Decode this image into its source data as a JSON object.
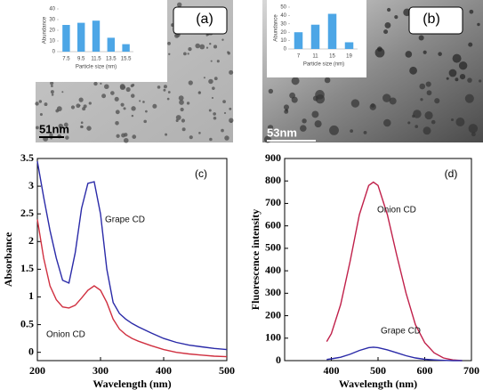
{
  "chart_data": [
    {
      "type": "bar",
      "panel_label": "(a)",
      "scale_bar": "51nm",
      "xlabel": "Particle size (nm)",
      "ylabel": "Abundance",
      "categories": [
        "7.5",
        "9.5",
        "11.5",
        "13.5",
        "15.5"
      ],
      "values": [
        25,
        27,
        29,
        13,
        7
      ],
      "color": "#4da6e6",
      "ylim": [
        0,
        40
      ],
      "yticks": [
        0,
        10,
        20,
        30,
        40
      ]
    },
    {
      "type": "bar",
      "panel_label": "(b)",
      "scale_bar": "53nm",
      "xlabel": "Particle size (nm)",
      "ylabel": "Abundance",
      "categories": [
        "7",
        "11",
        "15",
        "19"
      ],
      "values": [
        20,
        29,
        42,
        8
      ],
      "color": "#4da6e6",
      "ylim": [
        0,
        50
      ],
      "yticks": [
        0,
        10,
        20,
        30,
        40,
        50
      ]
    },
    {
      "type": "line",
      "panel_label": "(c)",
      "xlabel": "Wavelength (nm)",
      "ylabel": "Absorbance",
      "x": [
        200,
        210,
        220,
        230,
        240,
        250,
        260,
        270,
        280,
        290,
        300,
        310,
        320,
        330,
        340,
        350,
        360,
        380,
        400,
        420,
        440,
        460,
        480,
        500
      ],
      "series": [
        {
          "name": "Grape CD",
          "color": "#2a2aa8",
          "values": [
            3.45,
            2.8,
            2.2,
            1.7,
            1.3,
            1.25,
            1.8,
            2.6,
            3.05,
            3.08,
            2.5,
            1.5,
            0.9,
            0.7,
            0.6,
            0.52,
            0.46,
            0.35,
            0.25,
            0.18,
            0.13,
            0.1,
            0.07,
            0.05
          ]
        },
        {
          "name": "Onion CD",
          "color": "#d03040",
          "values": [
            2.4,
            1.7,
            1.2,
            0.95,
            0.82,
            0.8,
            0.85,
            0.98,
            1.12,
            1.2,
            1.12,
            0.9,
            0.6,
            0.42,
            0.32,
            0.25,
            0.2,
            0.12,
            0.05,
            0,
            -0.03,
            -0.05,
            -0.07,
            -0.08
          ]
        }
      ],
      "xlim": [
        200,
        500
      ],
      "xticks": [
        200,
        300,
        400,
        500
      ],
      "ylim": [
        -0.15,
        3.5
      ],
      "yticks": [
        0,
        0.5,
        1,
        1.5,
        2,
        2.5,
        3,
        3.5
      ]
    },
    {
      "type": "line",
      "panel_label": "(d)",
      "xlabel": "Wavelength (nm)",
      "ylabel": "Fluorescence intensity",
      "x": [
        390,
        400,
        420,
        440,
        460,
        480,
        490,
        500,
        520,
        540,
        560,
        580,
        600,
        620,
        640,
        660,
        680
      ],
      "series": [
        {
          "name": "Onion CD",
          "color": "#c0204a",
          "values": [
            85,
            120,
            250,
            440,
            650,
            780,
            795,
            780,
            650,
            470,
            300,
            160,
            80,
            35,
            12,
            3,
            0
          ]
        },
        {
          "name": "Grape CD",
          "color": "#2a2aa8",
          "values": [
            5,
            8,
            15,
            28,
            45,
            58,
            60,
            58,
            48,
            35,
            22,
            12,
            6,
            3,
            1,
            0,
            0
          ]
        }
      ],
      "xlim": [
        300,
        700
      ],
      "xticks": [
        400,
        500,
        600,
        700
      ],
      "ylim": [
        0,
        900
      ],
      "yticks": [
        0,
        100,
        200,
        300,
        400,
        500,
        600,
        700,
        800,
        900
      ]
    }
  ]
}
